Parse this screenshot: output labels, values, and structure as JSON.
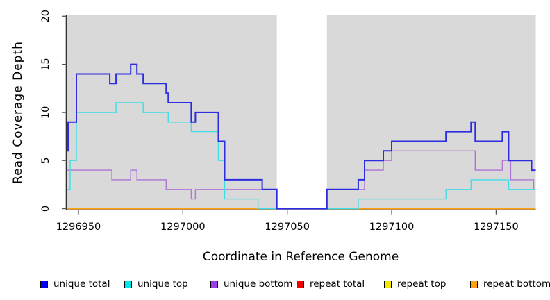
{
  "chart_data": {
    "type": "line",
    "step": "post",
    "title": "",
    "xlabel": "Coordinate in Reference Genome",
    "ylabel": "Read Coverage Depth",
    "xlim": [
      1296944,
      1297169
    ],
    "ylim": [
      0,
      20
    ],
    "xticks": [
      1296950,
      1297000,
      1297050,
      1297100,
      1297150
    ],
    "yticks": [
      0,
      5,
      10,
      15,
      20
    ],
    "grid": false,
    "legend_position": "bottom",
    "shade_color": "#d9d9d9",
    "background_shaded_regions": [
      {
        "from": 1296944,
        "to": 1297045
      },
      {
        "from": 1297069,
        "to": 1297169
      }
    ],
    "series": [
      {
        "name": "repeat total",
        "color": "#e00000",
        "points": [
          [
            1296944,
            0
          ],
          [
            1297169,
            0
          ]
        ]
      },
      {
        "name": "repeat top",
        "color": "#f0e400",
        "points": [
          [
            1296944,
            0
          ],
          [
            1297169,
            0
          ]
        ]
      },
      {
        "name": "repeat bottom",
        "color": "#ffa010",
        "points": [
          [
            1296944,
            0
          ],
          [
            1297169,
            0
          ]
        ]
      },
      {
        "name": "unique bottom",
        "color": "#ae74d8",
        "points": [
          [
            1296944,
            4
          ],
          [
            1296966,
            3
          ],
          [
            1296975,
            4
          ],
          [
            1296978,
            3
          ],
          [
            1296992,
            2
          ],
          [
            1297004,
            1
          ],
          [
            1297006,
            2
          ],
          [
            1297045,
            0
          ],
          [
            1297069,
            2
          ],
          [
            1297087,
            4
          ],
          [
            1297096,
            5
          ],
          [
            1297100,
            6
          ],
          [
            1297140,
            4
          ],
          [
            1297153,
            5
          ],
          [
            1297157,
            3
          ],
          [
            1297168,
            2
          ],
          [
            1297169,
            2
          ]
        ]
      },
      {
        "name": "unique top",
        "color": "#3edde8",
        "points": [
          [
            1296944,
            2
          ],
          [
            1296946,
            5
          ],
          [
            1296949,
            10
          ],
          [
            1296968,
            11
          ],
          [
            1296981,
            10
          ],
          [
            1296993,
            9
          ],
          [
            1297004,
            8
          ],
          [
            1297017,
            5
          ],
          [
            1297020,
            1
          ],
          [
            1297036,
            0
          ],
          [
            1297084,
            1
          ],
          [
            1297126,
            2
          ],
          [
            1297138,
            3
          ],
          [
            1297156,
            2
          ],
          [
            1297169,
            2
          ]
        ]
      },
      {
        "name": "unique total",
        "color": "#2c2ce0",
        "points": [
          [
            1296944,
            6
          ],
          [
            1296945,
            9
          ],
          [
            1296949,
            14
          ],
          [
            1296965,
            13
          ],
          [
            1296968,
            14
          ],
          [
            1296975,
            15
          ],
          [
            1296978,
            14
          ],
          [
            1296981,
            13
          ],
          [
            1296992,
            12
          ],
          [
            1296993,
            11
          ],
          [
            1297004,
            9
          ],
          [
            1297006,
            10
          ],
          [
            1297017,
            7
          ],
          [
            1297020,
            3
          ],
          [
            1297038,
            2
          ],
          [
            1297045,
            0
          ],
          [
            1297069,
            2
          ],
          [
            1297084,
            3
          ],
          [
            1297087,
            5
          ],
          [
            1297096,
            6
          ],
          [
            1297100,
            7
          ],
          [
            1297126,
            8
          ],
          [
            1297138,
            9
          ],
          [
            1297140,
            7
          ],
          [
            1297153,
            8
          ],
          [
            1297156,
            5
          ],
          [
            1297167,
            4
          ],
          [
            1297169,
            4
          ]
        ]
      }
    ],
    "legend": [
      {
        "label": "unique total",
        "color": "#0000f5"
      },
      {
        "label": "unique top",
        "color": "#00e6f0"
      },
      {
        "label": "unique bottom",
        "color": "#9d3ce8"
      },
      {
        "label": "repeat total",
        "color": "#f00000"
      },
      {
        "label": "repeat top",
        "color": "#f5e800"
      },
      {
        "label": "repeat bottom",
        "color": "#ffa010"
      }
    ]
  }
}
